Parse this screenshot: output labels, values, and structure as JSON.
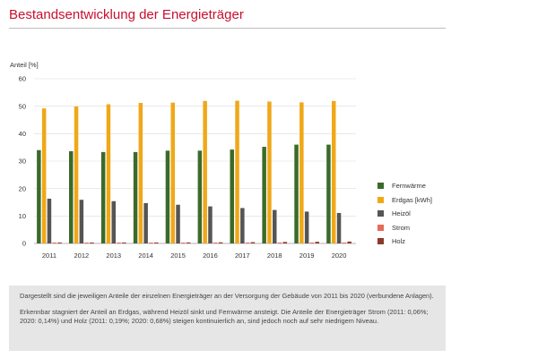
{
  "chart_data": {
    "type": "bar",
    "title": "Bestandsentwicklung der Energieträger",
    "ylabel": "Anteil [%]",
    "xlabel": "",
    "ylim": [
      0,
      60
    ],
    "yticks": [
      0,
      10,
      20,
      30,
      40,
      50,
      60
    ],
    "grid": "horizontal",
    "legend_position": "right",
    "categories": [
      "2011",
      "2012",
      "2013",
      "2014",
      "2015",
      "2016",
      "2017",
      "2018",
      "2019",
      "2020"
    ],
    "series": [
      {
        "name": "Fernwärme",
        "color": "#3a6b2a",
        "values": [
          34.0,
          33.6,
          33.3,
          33.3,
          33.8,
          33.8,
          34.2,
          35.2,
          36.0,
          36.0
        ]
      },
      {
        "name": "Erdgas [kWh]",
        "color": "#f0a818",
        "values": [
          49.2,
          49.9,
          50.7,
          51.2,
          51.3,
          51.9,
          52.0,
          51.7,
          51.4,
          51.9
        ]
      },
      {
        "name": "Heizöl",
        "color": "#555555",
        "values": [
          16.3,
          15.9,
          15.4,
          14.7,
          14.1,
          13.5,
          12.9,
          12.2,
          11.6,
          11.1
        ]
      },
      {
        "name": "Strom",
        "color": "#e86a5a",
        "values": [
          0.06,
          0.07,
          0.08,
          0.09,
          0.1,
          0.11,
          0.12,
          0.13,
          0.13,
          0.14
        ]
      },
      {
        "name": "Holz",
        "color": "#8b3a2a",
        "values": [
          0.19,
          0.22,
          0.26,
          0.3,
          0.35,
          0.4,
          0.46,
          0.53,
          0.6,
          0.68
        ]
      }
    ]
  },
  "note": {
    "paragraph1": "Dargestellt sind die jeweiligen Anteile der einzelnen Energieträger an der Versorgung der Gebäude von 2011 bis 2020 (verbundene Anlagen).",
    "paragraph2": "Erkennbar stagniert der Anteil an Erdgas, während Heizöl sinkt und Fernwärme ansteigt. Die Anteile der Energieträger Strom (2011: 0,06%; 2020: 0,14%) und Holz (2011: 0,19%; 2020: 0,68%) steigen kontinuierlich an, sind jedoch noch auf sehr niedrigem Niveau."
  }
}
